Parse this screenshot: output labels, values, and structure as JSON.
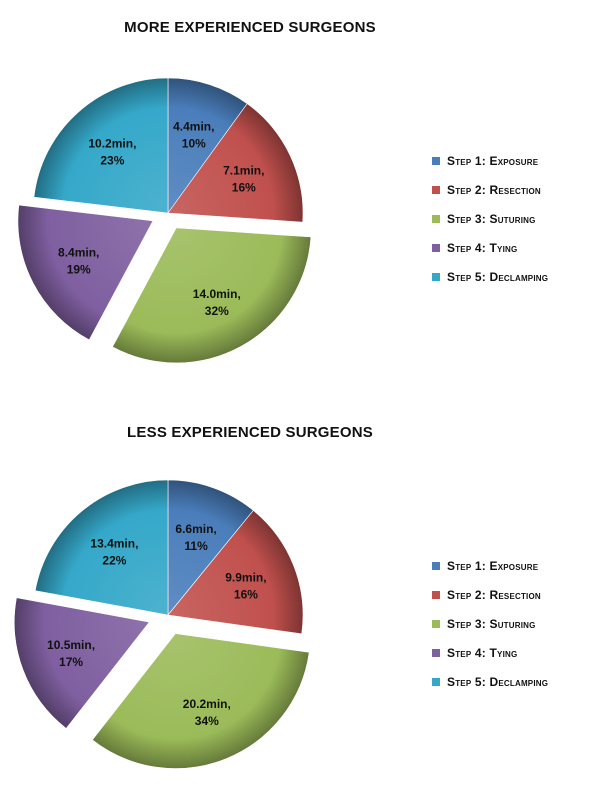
{
  "chart_data": [
    {
      "type": "pie",
      "title": "MORE EXPERIENCED  SURGEONS",
      "slices": [
        {
          "label": "Step 1:  Exposure",
          "minutes": 4.4,
          "minutes_text": "4.4min,",
          "percent": 10,
          "percent_text": "10%",
          "color": "#4a7ebb"
        },
        {
          "label": "Step 2:  Resection",
          "minutes": 7.1,
          "minutes_text": "7.1min,",
          "percent": 16,
          "percent_text": "16%",
          "color": "#c0504d"
        },
        {
          "label": "Step 3:  Suturing",
          "minutes": 14.0,
          "minutes_text": "14.0min,",
          "percent": 32,
          "percent_text": "32%",
          "color": "#9bbb59"
        },
        {
          "label": "Step 4:  Tying",
          "minutes": 8.4,
          "minutes_text": "8.4min,",
          "percent": 19,
          "percent_text": "19%",
          "color": "#7f5fa0"
        },
        {
          "label": "Step 5:  Declamping",
          "minutes": 10.2,
          "minutes_text": "10.2min,",
          "percent": 23,
          "percent_text": "23%",
          "color": "#35a8c9"
        }
      ],
      "exploded": [
        "Step 3:  Suturing",
        "Step 4:  Tying"
      ],
      "legend_position": "right"
    },
    {
      "type": "pie",
      "title": "LESS EXPERIENCED SURGEONS",
      "slices": [
        {
          "label": "Step 1:  Exposure",
          "minutes": 6.6,
          "minutes_text": "6.6min,",
          "percent": 11,
          "percent_text": "11%",
          "color": "#4a7ebb"
        },
        {
          "label": "Step 2:  Resection",
          "minutes": 9.9,
          "minutes_text": "9.9min,",
          "percent": 16,
          "percent_text": "16%",
          "color": "#c0504d"
        },
        {
          "label": "Step 3:  Suturing",
          "minutes": 20.2,
          "minutes_text": "20.2min,",
          "percent": 34,
          "percent_text": "34%",
          "color": "#9bbb59"
        },
        {
          "label": "Step 4:  Tying",
          "minutes": 10.5,
          "minutes_text": "10.5min,",
          "percent": 17,
          "percent_text": "17%",
          "color": "#7f5fa0"
        },
        {
          "label": "Step 5:  Declamping",
          "minutes": 13.4,
          "minutes_text": "13.4min,",
          "percent": 22,
          "percent_text": "22%",
          "color": "#35a8c9"
        }
      ],
      "exploded": [
        "Step 3:  Suturing",
        "Step 4:  Tying"
      ],
      "legend_position": "right"
    }
  ]
}
